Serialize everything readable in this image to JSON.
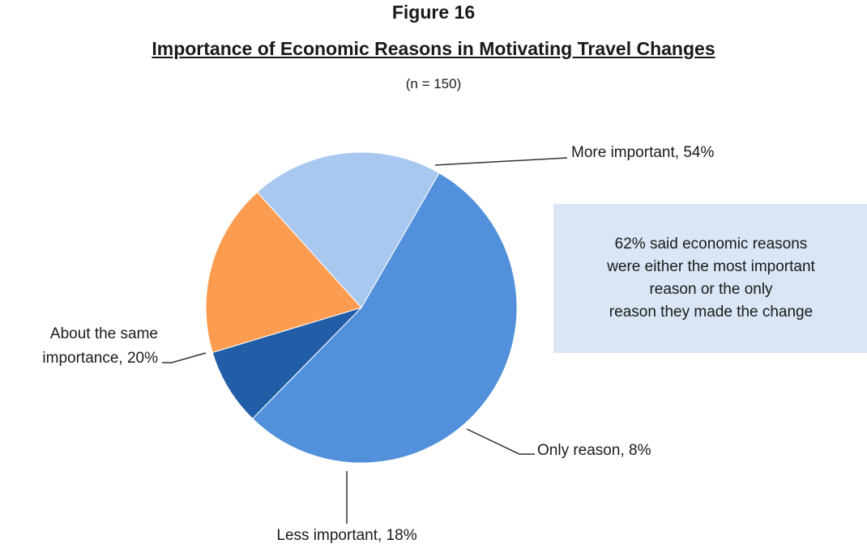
{
  "figure_label": "Figure 16",
  "title": "Importance of Economic Reasons in Motivating Travel Changes",
  "subtitle": "(n = 150)",
  "callout": {
    "lines": [
      "62% said economic reasons",
      "were either the most important",
      "reason or the only",
      "reason they made the change"
    ]
  },
  "chart_data": {
    "type": "pie",
    "title": "Importance of Economic Reasons in Motivating Travel Changes",
    "slices": [
      {
        "name": "More important",
        "value": 54,
        "label": "More important, 54%",
        "color": "#5290dc"
      },
      {
        "name": "Only reason",
        "value": 8,
        "label": "Only reason, 8%",
        "color": "#225ea7"
      },
      {
        "name": "Less important",
        "value": 18,
        "label": "Less important, 18%",
        "color": "#fc9c50"
      },
      {
        "name": "About the same importance",
        "value": 20,
        "label_lines": [
          "About the same",
          "importance, 20%"
        ],
        "color": "#a9c8ef"
      }
    ]
  }
}
